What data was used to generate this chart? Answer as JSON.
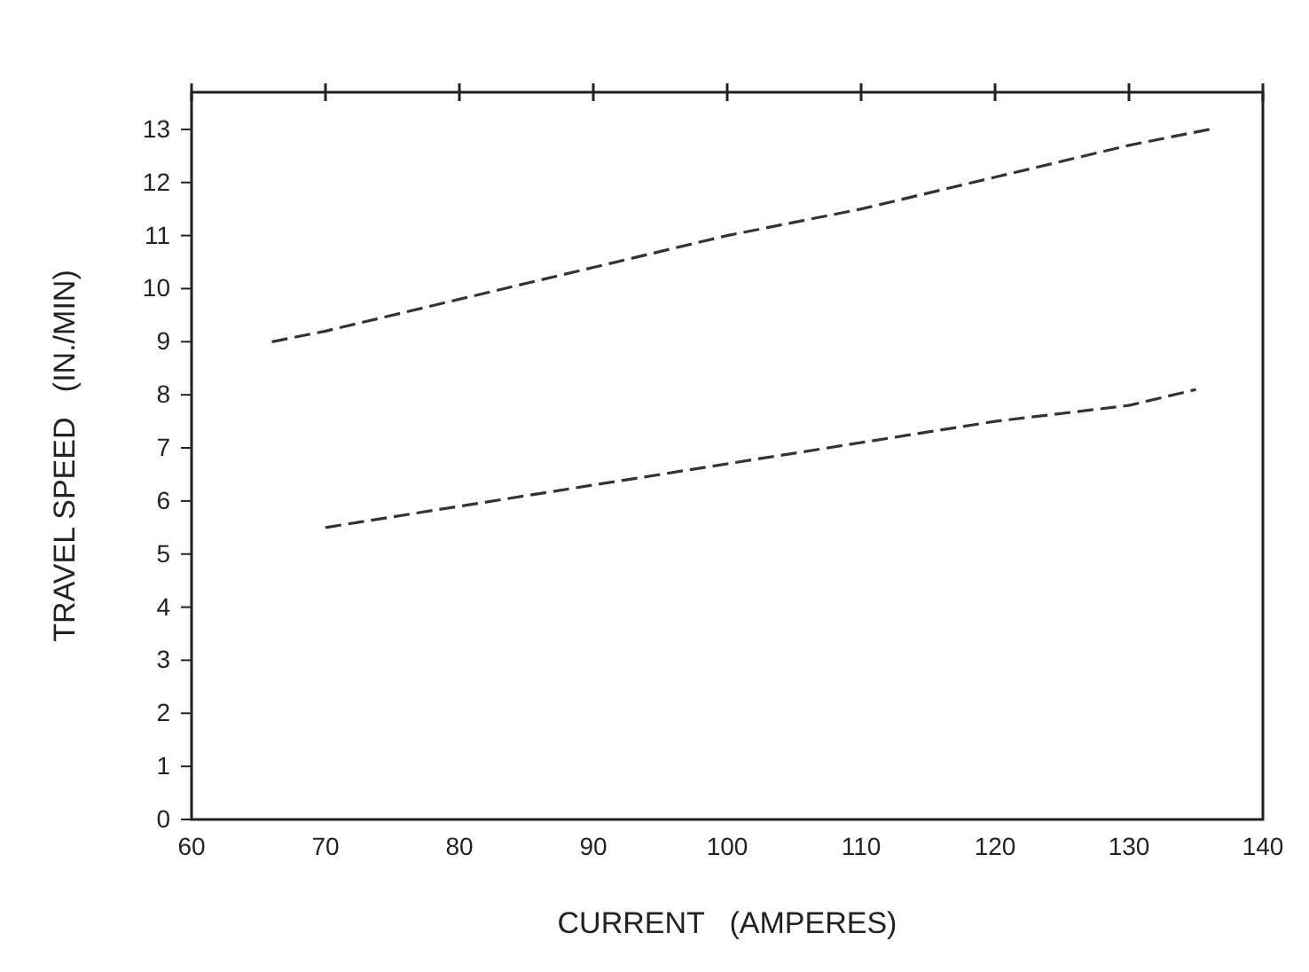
{
  "chart_data": {
    "type": "line",
    "xlabel": "CURRENT   (AMPERES)",
    "ylabel": "TRAVEL SPEED   (IN./MIN)",
    "xlim": [
      60,
      140
    ],
    "xticks": [
      60,
      70,
      80,
      90,
      100,
      110,
      120,
      130,
      140
    ],
    "ylim": [
      0,
      13.7
    ],
    "yticks": [
      0,
      1,
      2,
      3,
      4,
      5,
      6,
      7,
      8,
      9,
      10,
      11,
      12,
      13
    ],
    "line_style": "dashed",
    "grid": false,
    "series": [
      {
        "color": "#333333",
        "x": [
          66,
          70,
          80,
          90,
          100,
          110,
          120,
          130,
          136
        ],
        "values": [
          9.0,
          9.2,
          9.8,
          10.4,
          11.0,
          11.5,
          12.1,
          12.7,
          13.0
        ]
      },
      {
        "color": "#333333",
        "x": [
          70,
          80,
          90,
          100,
          110,
          120,
          130,
          135
        ],
        "values": [
          5.5,
          5.9,
          6.3,
          6.7,
          7.1,
          7.5,
          7.8,
          8.1
        ]
      }
    ]
  }
}
